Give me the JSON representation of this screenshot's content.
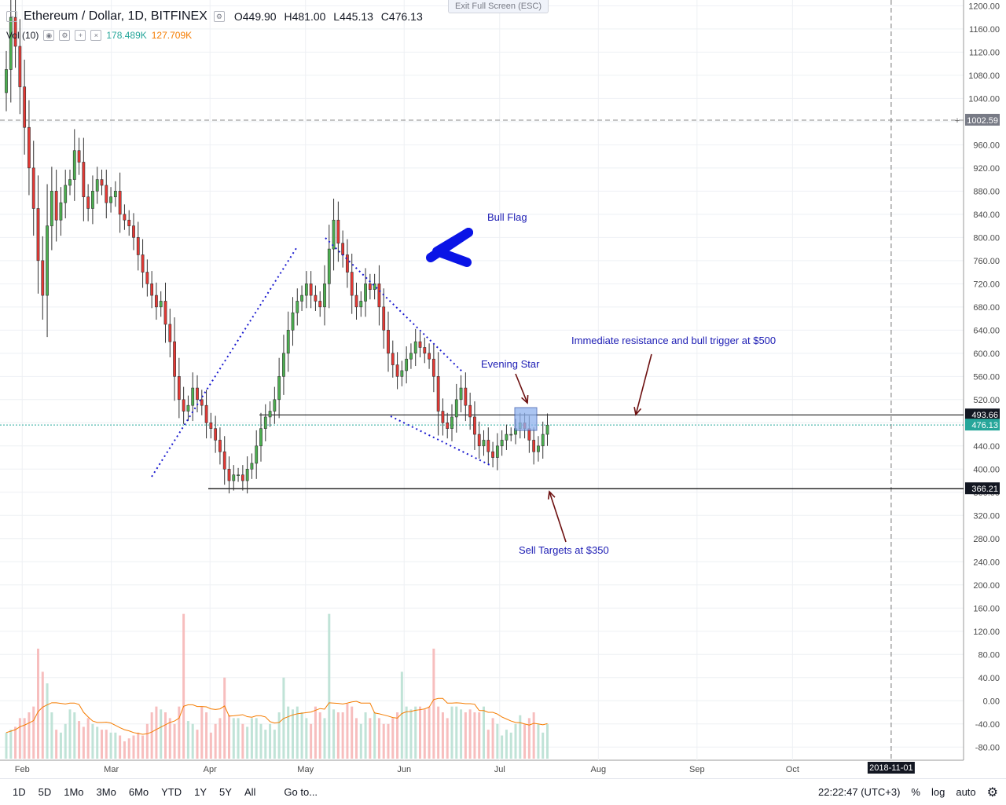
{
  "header": {
    "title": "Ethereum / Dollar, 1D, BITFINEX",
    "ohlc": {
      "open": "O449.90",
      "high": "H481.00",
      "low": "L445.13",
      "close": "C476.13"
    },
    "volume_label": "Vol (10)",
    "volume_up": "178.489K",
    "volume_down": "127.709K",
    "exit_fullscreen": "Exit Full Screen (ESC)"
  },
  "colors": {
    "up": "#26a69a",
    "down": "#ef5350",
    "candle_up_fill": "#4caf50",
    "candle_down_fill": "#e53935",
    "annotation": "#1c1cb4",
    "arrow": "#6d1010",
    "box_fill": "#8fb2ee"
  },
  "price_labels": {
    "resistance": "493.66",
    "current": "476.13",
    "support": "366.21",
    "dashed": "1002.59",
    "crosshair_date": "2018-11-01"
  },
  "annotations": {
    "bull_flag": "Bull Flag",
    "evening_star": "Evening Star",
    "resistance_note": "Immediate resistance and bull trigger at $500",
    "sell_targets": "Sell Targets at $350"
  },
  "bottom_bar": {
    "ranges": [
      "1D",
      "5D",
      "1Mo",
      "3Mo",
      "6Mo",
      "YTD",
      "1Y",
      "5Y",
      "All"
    ],
    "goto": "Go to...",
    "time": "22:22:47 (UTC+3)",
    "percent": "%",
    "log": "log",
    "auto": "auto",
    "settings_icon": "gear-icon"
  },
  "chart_data": {
    "type": "candlestick",
    "title": "Ethereum / Dollar, 1D, BITFINEX",
    "x_tick_labels": [
      "Feb",
      "Mar",
      "Apr",
      "May",
      "Jun",
      "Jul",
      "Aug",
      "Sep",
      "Oct"
    ],
    "price_axis_ticks": [
      1200,
      1160,
      1120,
      1080,
      1040,
      1000,
      960,
      920,
      880,
      840,
      800,
      760,
      720,
      680,
      640,
      600,
      560,
      520,
      480,
      440,
      400,
      360,
      320,
      280,
      240,
      200,
      160,
      120,
      80,
      40,
      0,
      -40,
      -80
    ],
    "price_axis_labels": [
      "1200.00",
      "1160.00",
      "1120.00",
      "1080.00",
      "1040.00",
      "1000.00",
      "960.00",
      "920.00",
      "880.00",
      "840.00",
      "800.00",
      "760.00",
      "720.00",
      "680.00",
      "640.00",
      "600.00",
      "560.00",
      "520.00",
      "480.00",
      "440.00",
      "400.00",
      "360.00",
      "320.00",
      "280.00",
      "240.00",
      "200.00",
      "160.00",
      "120.00",
      "80.00",
      "40.00",
      "0.00",
      "-40.00",
      "-80.00"
    ],
    "ylim": [
      -110,
      1220
    ],
    "horizontal_levels": {
      "resistance": 493.66,
      "support": 366.21,
      "dashed": 1002.59,
      "current": 476.13
    },
    "start_date": "2018-01-27",
    "closes": [
      1090,
      1180,
      1130,
      1060,
      990,
      920,
      850,
      760,
      700,
      820,
      880,
      830,
      860,
      890,
      900,
      950,
      930,
      870,
      850,
      880,
      900,
      890,
      860,
      870,
      880,
      840,
      830,
      820,
      800,
      770,
      740,
      720,
      700,
      680,
      690,
      650,
      620,
      560,
      520,
      500,
      510,
      540,
      520,
      510,
      480,
      470,
      450,
      430,
      400,
      380,
      390,
      390,
      380,
      400,
      410,
      440,
      470,
      490,
      500,
      520,
      560,
      600,
      640,
      670,
      690,
      700,
      720,
      700,
      690,
      680,
      720,
      780,
      830,
      790,
      770,
      740,
      700,
      680,
      690,
      720,
      710,
      720,
      680,
      640,
      600,
      580,
      560,
      570,
      590,
      600,
      620,
      610,
      600,
      590,
      560,
      500,
      480,
      470,
      490,
      520,
      540,
      510,
      490,
      460,
      440,
      450,
      430,
      420,
      440,
      450,
      460,
      460,
      470,
      480,
      470,
      450,
      430,
      440,
      460,
      476
    ],
    "volumes": [
      -55,
      -50,
      -45,
      -30,
      -30,
      -20,
      -10,
      90,
      50,
      30,
      -20,
      -50,
      -55,
      -40,
      -15,
      -20,
      -35,
      -45,
      -30,
      -40,
      -45,
      -50,
      -50,
      -55,
      -55,
      -60,
      -70,
      -65,
      -60,
      -55,
      -60,
      -40,
      -20,
      -10,
      -15,
      -20,
      -30,
      -40,
      -10,
      150,
      -35,
      -40,
      -50,
      -10,
      -20,
      -55,
      -40,
      -30,
      40,
      -25,
      -30,
      -30,
      -40,
      -45,
      -30,
      -30,
      -40,
      -50,
      -40,
      -50,
      -20,
      40,
      -10,
      -15,
      -10,
      -20,
      -30,
      -40,
      -10,
      -20,
      -30,
      150,
      -15,
      -20,
      -20,
      -5,
      -10,
      -30,
      -40,
      -20,
      -30,
      -20,
      -30,
      -40,
      -40,
      -30,
      -20,
      50,
      -10,
      -15,
      -10,
      -10,
      -15,
      -10,
      90,
      -10,
      -20,
      -30,
      -10,
      -10,
      -15,
      -20,
      -15,
      -20,
      -20,
      -10,
      -50,
      -30,
      -40,
      -60,
      -50,
      -55,
      -40,
      -25,
      -40,
      -30,
      -20,
      -40,
      -55,
      -40
    ]
  }
}
